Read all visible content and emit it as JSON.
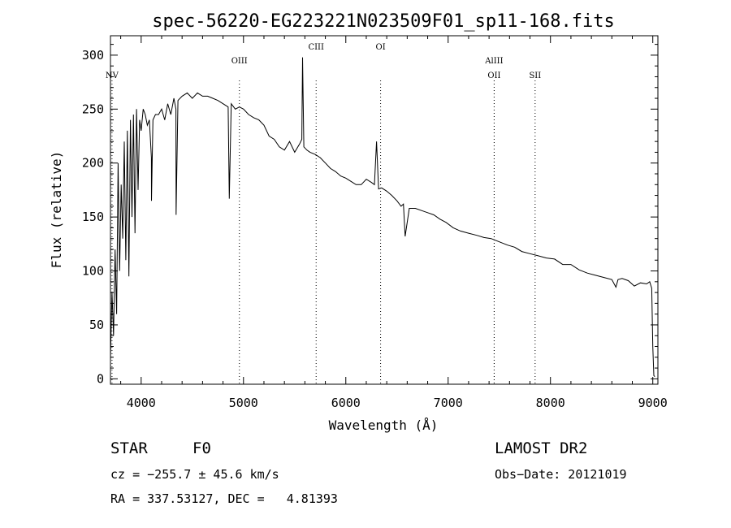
{
  "chart_data": {
    "type": "line",
    "title": "spec-56220-EG223221N023509F01_sp11-168.fits",
    "xlabel": "Wavelength (Å)",
    "ylabel": "Flux (relative)",
    "xlim": [
      3700,
      9050
    ],
    "ylim": [
      -5,
      318
    ],
    "xticks": [
      "4000",
      "5000",
      "6000",
      "7000",
      "8000",
      "9000"
    ],
    "yticks": [
      "0",
      "50",
      "100",
      "150",
      "200",
      "250",
      "300"
    ],
    "grid": false,
    "legend": "none",
    "spectral_lines": [
      {
        "label": "NV",
        "x": 3715,
        "label_row": 2
      },
      {
        "label": "OIII",
        "x": 4960,
        "label_row": 1
      },
      {
        "label": "CIII",
        "x": 5710,
        "label_row": 0
      },
      {
        "label": "OI",
        "x": 6340,
        "label_row": 0
      },
      {
        "label": "AlIII",
        "x": 7450,
        "label_row": 1
      },
      {
        "label": "OII",
        "x": 7450,
        "label_row": 2
      },
      {
        "label": "SII",
        "x": 7850,
        "label_row": 2
      }
    ],
    "series": [
      {
        "x": [
          3700,
          3715,
          3730,
          3745,
          3760,
          3775,
          3790,
          3805,
          3820,
          3835,
          3850,
          3865,
          3880,
          3895,
          3910,
          3925,
          3940,
          3955,
          3970,
          3985,
          4000,
          4020,
          4040,
          4060,
          4080,
          4100,
          4101,
          4115,
          4140,
          4170,
          4200,
          4230,
          4260,
          4290,
          4320,
          4340,
          4341,
          4360,
          4400,
          4450,
          4500,
          4550,
          4600,
          4650,
          4700,
          4750,
          4800,
          4850,
          4861,
          4880,
          4920,
          4960,
          5000,
          5050,
          5100,
          5150,
          5200,
          5250,
          5300,
          5350,
          5400,
          5450,
          5500,
          5550,
          5570,
          5577,
          5590,
          5620,
          5650,
          5700,
          5750,
          5800,
          5850,
          5900,
          5950,
          6000,
          6050,
          6100,
          6150,
          6200,
          6250,
          6280,
          6300,
          6320,
          6350,
          6400,
          6450,
          6500,
          6540,
          6563,
          6580,
          6620,
          6680,
          6740,
          6800,
          6860,
          6920,
          6980,
          7050,
          7120,
          7200,
          7280,
          7350,
          7420,
          7500,
          7580,
          7650,
          7720,
          7800,
          7880,
          7960,
          8040,
          8120,
          8200,
          8280,
          8360,
          8440,
          8520,
          8600,
          8640,
          8660,
          8700,
          8760,
          8820,
          8880,
          8940,
          8970,
          8990,
          9000,
          9010,
          9020
        ],
        "y": [
          20,
          80,
          40,
          120,
          60,
          200,
          100,
          180,
          130,
          220,
          110,
          230,
          95,
          240,
          150,
          245,
          135,
          250,
          175,
          240,
          230,
          250,
          245,
          235,
          240,
          205,
          165,
          240,
          245,
          245,
          250,
          240,
          255,
          245,
          260,
          250,
          152,
          258,
          262,
          265,
          260,
          265,
          262,
          262,
          260,
          258,
          255,
          252,
          167,
          255,
          250,
          252,
          250,
          245,
          242,
          240,
          235,
          225,
          222,
          215,
          212,
          220,
          210,
          218,
          222,
          298,
          215,
          212,
          210,
          208,
          205,
          200,
          195,
          192,
          188,
          186,
          183,
          180,
          180,
          185,
          182,
          180,
          220,
          176,
          177,
          174,
          170,
          165,
          160,
          162,
          132,
          158,
          158,
          156,
          154,
          152,
          148,
          145,
          140,
          137,
          135,
          133,
          131,
          130,
          127,
          124,
          122,
          118,
          116,
          114,
          112,
          111,
          106,
          106,
          101,
          98,
          96,
          94,
          92,
          85,
          92,
          93,
          91,
          86,
          89,
          88,
          90,
          84,
          30,
          3,
          2
        ]
      }
    ]
  },
  "footer": {
    "object_type": "STAR",
    "subclass": "F0",
    "cz": "cz = −255.7 ± 45.6 km/s",
    "radec": "RA = 337.53127, DEC =   4.81393",
    "survey": "LAMOST DR2",
    "obs_date": "Obs−Date: 20121019"
  }
}
